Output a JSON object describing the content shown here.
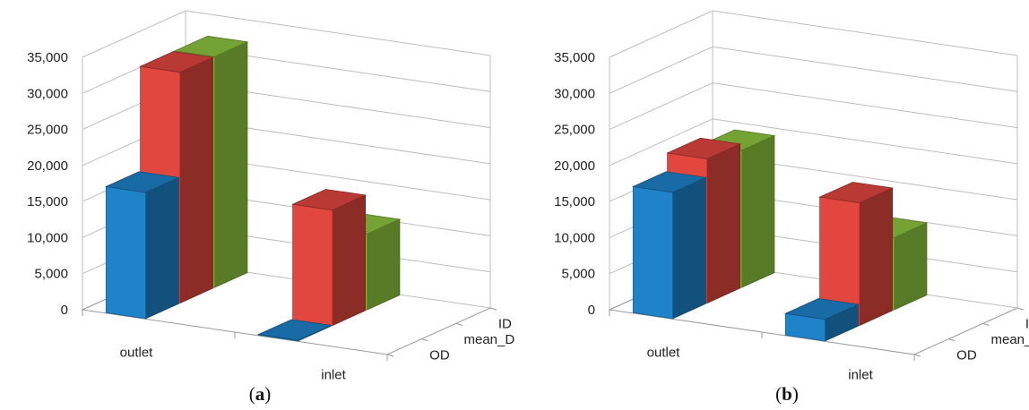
{
  "chart_data": [
    {
      "type": "bar",
      "subtype": "3d-column",
      "panel_label": {
        "open": "(",
        "letter": "a",
        "close": ")"
      },
      "categories": [
        "outlet",
        "inlet"
      ],
      "depth_categories": [
        "ID",
        "mean_D",
        "OD"
      ],
      "y_ticks": [
        "0",
        "5,000",
        "10,000",
        "15,000",
        "20,000",
        "25,000",
        "30,000",
        "35,000"
      ],
      "ylim": [
        0,
        35000
      ],
      "series": [
        {
          "name": "ID",
          "color": "#8dc63f",
          "values": [
            32000,
            10500
          ]
        },
        {
          "name": "mean_D",
          "color": "#e2473f",
          "values": [
            32000,
            16000
          ]
        },
        {
          "name": "OD",
          "color": "#1f83c9",
          "values": [
            17500,
            100
          ]
        }
      ],
      "grid": true
    },
    {
      "type": "bar",
      "subtype": "3d-column",
      "panel_label": {
        "open": "(",
        "letter": "b",
        "close": ")"
      },
      "categories": [
        "outlet",
        "inlet"
      ],
      "depth_categories": [
        "ID",
        "mean_D",
        "OD"
      ],
      "y_ticks": [
        "0",
        "5,000",
        "10,000",
        "15,000",
        "20,000",
        "25,000",
        "30,000",
        "35,000"
      ],
      "ylim": [
        0,
        35000
      ],
      "series": [
        {
          "name": "ID",
          "color": "#8dc63f",
          "values": [
            19000,
            10000
          ]
        },
        {
          "name": "mean_D",
          "color": "#e2473f",
          "values": [
            20000,
            17000
          ]
        },
        {
          "name": "OD",
          "color": "#1f83c9",
          "values": [
            17500,
            3000
          ]
        }
      ],
      "grid": true
    }
  ]
}
